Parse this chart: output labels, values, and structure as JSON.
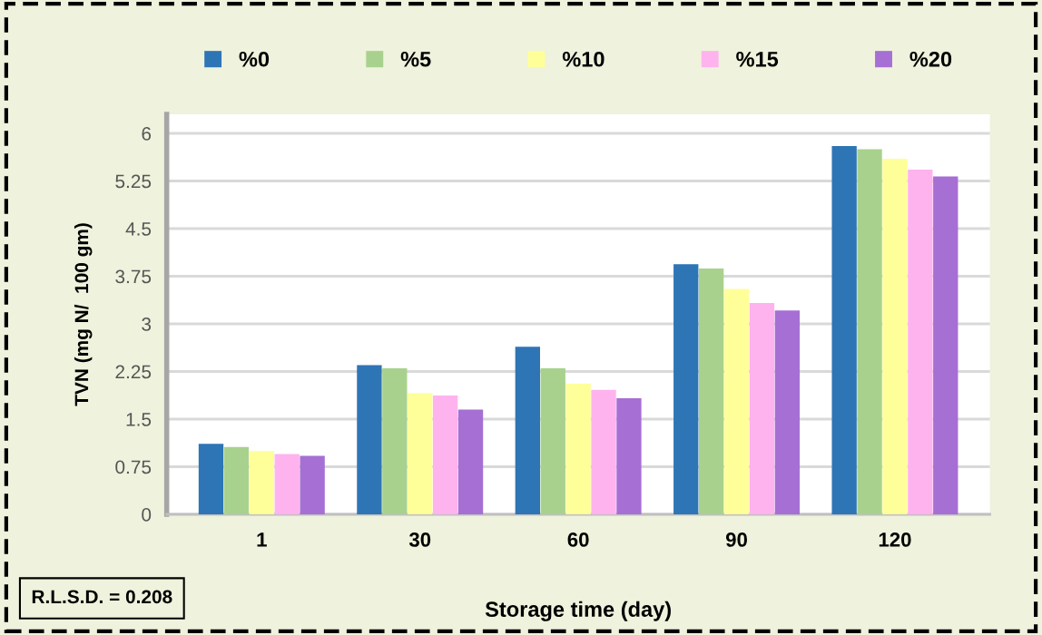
{
  "chart_data": {
    "type": "bar",
    "xlabel": "Storage time (day)",
    "ylabel": "TVN (mg N/  100 gm)",
    "categories": [
      "1",
      "30",
      "60",
      "90",
      "120"
    ],
    "series": [
      {
        "name": "%0",
        "color": "#2e75b6",
        "values": [
          1.11,
          2.35,
          2.64,
          3.94,
          5.8
        ]
      },
      {
        "name": "%5",
        "color": "#a9d18e",
        "values": [
          1.06,
          2.3,
          2.3,
          3.87,
          5.75
        ]
      },
      {
        "name": "%10",
        "color": "#ffff99",
        "values": [
          1.0,
          1.91,
          2.06,
          3.55,
          5.6
        ]
      },
      {
        "name": "%15",
        "color": "#ffb3ee",
        "values": [
          0.95,
          1.87,
          1.96,
          3.33,
          5.43
        ]
      },
      {
        "name": "%20",
        "color": "#a66fd4",
        "values": [
          0.92,
          1.65,
          1.83,
          3.21,
          5.32
        ]
      }
    ],
    "ylim": [
      0,
      6.3
    ],
    "yticks": [
      0,
      0.75,
      1.5,
      2.25,
      3,
      3.75,
      4.5,
      5.25,
      6
    ],
    "grid": "y",
    "legend": "top",
    "annotations": [
      "R.L.S.D. = 0.208"
    ]
  }
}
